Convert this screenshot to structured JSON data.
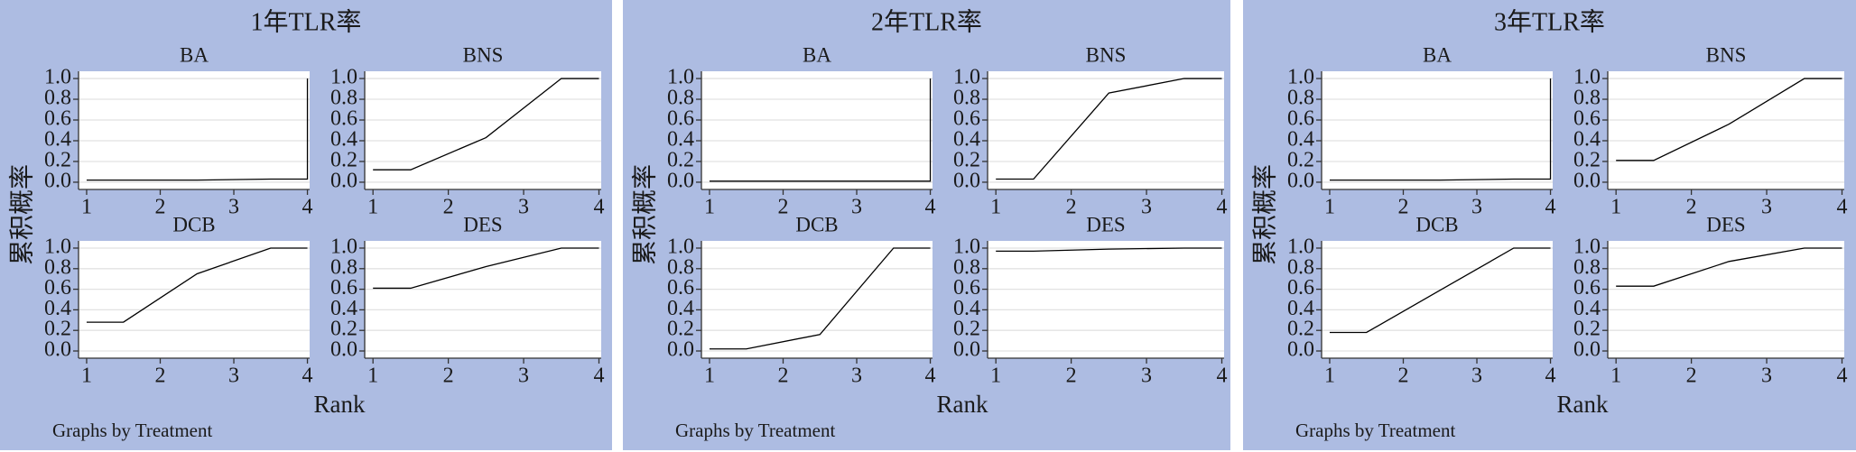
{
  "chart_data": [
    {
      "type": "line",
      "title": "1年TLR率",
      "ylabel": "累积概率",
      "xlabel": "Rank",
      "note": "Graphs by Treatment",
      "xlim": [
        0.89,
        4.03
      ],
      "ylim": [
        -0.07,
        1.07
      ],
      "xticks": [
        1,
        2,
        3,
        4
      ],
      "yticks": [
        {
          "value": 0,
          "label": "0.0"
        },
        0.2,
        0.4,
        0.6,
        0.8,
        {
          "value": 1,
          "label": "1.0"
        }
      ],
      "grid": true,
      "color": "#000000",
      "subplots": [
        {
          "title": "BA",
          "x": [
            1,
            1.5,
            2.5,
            3.5,
            4,
            4
          ],
          "values": [
            0.02,
            0.02,
            0.02,
            0.03,
            0.03,
            1.0
          ]
        },
        {
          "title": "BNS",
          "x": [
            1,
            1.5,
            2.5,
            3.5,
            4
          ],
          "values": [
            0.12,
            0.12,
            0.43,
            1.0,
            1.0
          ]
        },
        {
          "title": "DCB",
          "x": [
            1,
            1.5,
            2.5,
            3.5,
            4
          ],
          "values": [
            0.28,
            0.28,
            0.75,
            1.0,
            1.0
          ]
        },
        {
          "title": "DES",
          "x": [
            1,
            1.5,
            2.5,
            3.5,
            4
          ],
          "values": [
            0.61,
            0.61,
            0.82,
            1.0,
            1.0
          ]
        }
      ]
    },
    {
      "type": "line",
      "title": "2年TLR率",
      "ylabel": "累积概率",
      "xlabel": "Rank",
      "note": "Graphs by Treatment",
      "xlim": [
        0.89,
        4.03
      ],
      "ylim": [
        -0.07,
        1.07
      ],
      "xticks": [
        1,
        2,
        3,
        4
      ],
      "yticks": [
        {
          "value": 0,
          "label": "0.0"
        },
        0.2,
        0.4,
        0.6,
        0.8,
        {
          "value": 1,
          "label": "1.0"
        }
      ],
      "grid": true,
      "color": "#000000",
      "subplots": [
        {
          "title": "BA",
          "x": [
            1,
            1.5,
            2.5,
            3.5,
            4,
            4
          ],
          "values": [
            0.01,
            0.01,
            0.01,
            0.01,
            0.01,
            1.0
          ]
        },
        {
          "title": "BNS",
          "x": [
            1,
            1.5,
            2.5,
            3.5,
            4
          ],
          "values": [
            0.03,
            0.03,
            0.86,
            1.0,
            1.0
          ]
        },
        {
          "title": "DCB",
          "x": [
            1,
            1.5,
            2.5,
            3.5,
            4
          ],
          "values": [
            0.02,
            0.02,
            0.16,
            1.0,
            1.0
          ]
        },
        {
          "title": "DES",
          "x": [
            1,
            1.5,
            2.5,
            3.5,
            4
          ],
          "values": [
            0.97,
            0.97,
            0.99,
            1.0,
            1.0
          ]
        }
      ]
    },
    {
      "type": "line",
      "title": "3年TLR率",
      "ylabel": "累积概率",
      "xlabel": "Rank",
      "note": "Graphs by Treatment",
      "xlim": [
        0.89,
        4.03
      ],
      "ylim": [
        -0.07,
        1.07
      ],
      "xticks": [
        1,
        2,
        3,
        4
      ],
      "yticks": [
        {
          "value": 0,
          "label": "0.0"
        },
        0.2,
        0.4,
        0.6,
        0.8,
        {
          "value": 1,
          "label": "1.0"
        }
      ],
      "grid": true,
      "color": "#000000",
      "subplots": [
        {
          "title": "BA",
          "x": [
            1,
            1.5,
            2.5,
            3.5,
            4,
            4
          ],
          "values": [
            0.02,
            0.02,
            0.02,
            0.03,
            0.03,
            1.0
          ]
        },
        {
          "title": "BNS",
          "x": [
            1,
            1.5,
            2.5,
            3.5,
            4
          ],
          "values": [
            0.21,
            0.21,
            0.56,
            1.0,
            1.0
          ]
        },
        {
          "title": "DCB",
          "x": [
            1,
            1.5,
            2.5,
            3.5,
            4
          ],
          "values": [
            0.18,
            0.18,
            0.59,
            1.0,
            1.0
          ]
        },
        {
          "title": "DES",
          "x": [
            1,
            1.5,
            2.5,
            3.5,
            4
          ],
          "values": [
            0.63,
            0.63,
            0.87,
            1.0,
            1.0
          ]
        }
      ]
    }
  ]
}
